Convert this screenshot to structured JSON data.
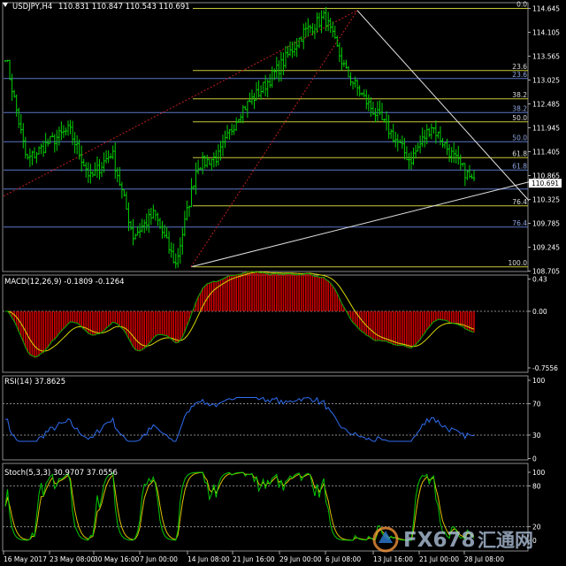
{
  "header": {
    "symbol_tf": "USDJPY,H4",
    "ohlc": "110.831 110.847 110.543 110.691"
  },
  "main_panel": {
    "y_ticks": [
      {
        "value": 114.645,
        "label": "114.645"
      },
      {
        "value": 114.105,
        "label": "114.105"
      },
      {
        "value": 113.565,
        "label": "113.565"
      },
      {
        "value": 113.025,
        "label": "113.025"
      },
      {
        "value": 112.485,
        "label": "112.485"
      },
      {
        "value": 111.945,
        "label": "111.945"
      },
      {
        "value": 111.405,
        "label": "111.405"
      },
      {
        "value": 110.865,
        "label": "110.865"
      },
      {
        "value": 110.325,
        "label": "110.325"
      },
      {
        "value": 109.785,
        "label": "109.785"
      },
      {
        "value": 109.245,
        "label": "109.245"
      },
      {
        "value": 108.705,
        "label": "108.705"
      }
    ],
    "current_price": "110.691",
    "fib_set_1": {
      "color": "#c9c93a",
      "levels": [
        {
          "value": 114.645,
          "label": "0.0"
        },
        {
          "value": 113.24,
          "label": "23.6"
        },
        {
          "value": 112.6,
          "label": "38.2"
        },
        {
          "value": 112.08,
          "label": "50.0"
        },
        {
          "value": 111.27,
          "label": "61.8"
        },
        {
          "value": 110.18,
          "label": "76.4"
        },
        {
          "value": 108.8,
          "label": "100.0"
        }
      ]
    },
    "fib_set_2": {
      "color": "#5b78c8",
      "levels": [
        {
          "value": 113.06,
          "label": "23.6"
        },
        {
          "value": 112.29,
          "label": "38.2"
        },
        {
          "value": 111.63,
          "label": "50.0"
        },
        {
          "value": 110.99,
          "label": "61.8"
        },
        {
          "value": 109.7,
          "label": "76.4"
        }
      ]
    },
    "blue_line_value": 110.56
  },
  "macd_panel": {
    "label": "MACD(12,26,9) -0.1809 -0.1264",
    "y_ticks": [
      {
        "value": 0.43,
        "label": "0.43"
      },
      {
        "value": 0.0,
        "label": "0.00"
      },
      {
        "value": -0.7556,
        "label": "-0.7556"
      }
    ]
  },
  "rsi_panel": {
    "label": "RSI(14) 37.8625",
    "y_ticks": [
      {
        "value": 100,
        "label": "100"
      },
      {
        "value": 70,
        "label": "70"
      },
      {
        "value": 30,
        "label": "30"
      },
      {
        "value": 0,
        "label": "0"
      }
    ]
  },
  "stoch_panel": {
    "label": "Stoch(5,3,3) 30.9707 37.0556",
    "y_ticks": [
      {
        "value": 100,
        "label": "100"
      },
      {
        "value": 80,
        "label": "80"
      },
      {
        "value": 20,
        "label": "20"
      },
      {
        "value": 0,
        "label": "0"
      }
    ]
  },
  "x_axis": {
    "labels": [
      "16 May 2017",
      "23 May 08:00",
      "30 May 16:00",
      "7 Jun 00:00",
      "14 Jun 08:00",
      "21 Jun 16:00",
      "29 Jun 00:00",
      "6 Jul 08:00",
      "13 Jul 16:00",
      "21 Jul 00:00",
      "28 Jul 08:00"
    ]
  },
  "watermark": {
    "text_a": "FX678",
    "text_b": "汇通网"
  },
  "colors": {
    "background": "#000000",
    "bull_candle": "#00d000",
    "macd_hist": "#d00000",
    "macd_signal": "#d8d800",
    "macd_line": "#00b000",
    "rsi_line": "#2f6df0",
    "stoch_main": "#00c800",
    "stoch_signal": "#e0c000",
    "trendline": "#e0e0e0",
    "dashed": "#c02020",
    "axis_text": "#ffffff"
  },
  "chart_data": {
    "type": "line",
    "title": "USDJPY,H4",
    "ohlc_last": {
      "open": 110.831,
      "high": 110.847,
      "low": 110.543,
      "close": 110.691
    },
    "price_path_approx": [
      {
        "x": "16 May 2017",
        "y": 113.6
      },
      {
        "x": "18 May 2017",
        "y": 111.2
      },
      {
        "x": "23 May 08:00",
        "y": 111.6
      },
      {
        "x": "25 May 2017",
        "y": 111.9
      },
      {
        "x": "30 May 16:00",
        "y": 110.8
      },
      {
        "x": "2 Jun 2017",
        "y": 111.4
      },
      {
        "x": "7 Jun 00:00",
        "y": 109.5
      },
      {
        "x": "12 Jun 2017",
        "y": 110.0
      },
      {
        "x": "14 Jun 08:00",
        "y": 108.85
      },
      {
        "x": "16 Jun 2017",
        "y": 111.1
      },
      {
        "x": "21 Jun 16:00",
        "y": 111.3
      },
      {
        "x": "26 Jun 2017",
        "y": 112.3
      },
      {
        "x": "29 Jun 00:00",
        "y": 112.8
      },
      {
        "x": "3 Jul 2017",
        "y": 113.4
      },
      {
        "x": "6 Jul 08:00",
        "y": 114.1
      },
      {
        "x": "7 Jul 2017",
        "y": 114.45
      },
      {
        "x": "11 Jul 2017",
        "y": 113.2
      },
      {
        "x": "13 Jul 16:00",
        "y": 112.5
      },
      {
        "x": "18 Jul 2017",
        "y": 111.9
      },
      {
        "x": "21 Jul 00:00",
        "y": 111.2
      },
      {
        "x": "24 Jul 2017",
        "y": 112.0
      },
      {
        "x": "26 Jul 2017",
        "y": 111.3
      },
      {
        "x": "28 Jul 08:00",
        "y": 110.69
      }
    ],
    "macd_last": {
      "macd": -0.1809,
      "signal": -0.1264
    },
    "rsi_last": 37.8625,
    "stoch_last": {
      "k": 30.9707,
      "d": 37.0556
    }
  }
}
